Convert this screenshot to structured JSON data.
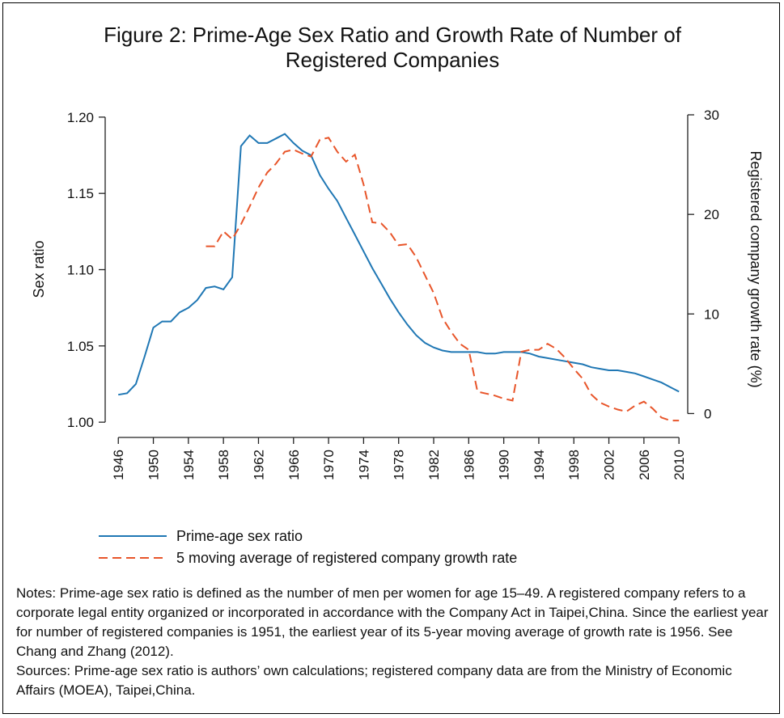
{
  "chart_data": {
    "type": "line",
    "title": "Figure 2: Prime-Age Sex Ratio and Growth Rate of Number of Registered Companies",
    "ylabel": "Sex ratio",
    "y2label": "Registered company growth rate (%)",
    "x": [
      1946,
      1947,
      1948,
      1949,
      1950,
      1951,
      1952,
      1953,
      1954,
      1955,
      1956,
      1957,
      1958,
      1959,
      1960,
      1961,
      1962,
      1963,
      1964,
      1965,
      1966,
      1967,
      1968,
      1969,
      1970,
      1971,
      1972,
      1973,
      1974,
      1975,
      1976,
      1977,
      1978,
      1979,
      1980,
      1981,
      1982,
      1983,
      1984,
      1985,
      1986,
      1987,
      1988,
      1989,
      1990,
      1991,
      1992,
      1993,
      1994,
      1995,
      1996,
      1997,
      1998,
      1999,
      2000,
      2001,
      2002,
      2003,
      2004,
      2005,
      2006,
      2007,
      2008,
      2009,
      2010
    ],
    "xlim": [
      1944.5,
      2011
    ],
    "xticks": [
      1946,
      1950,
      1954,
      1958,
      1962,
      1966,
      1970,
      1974,
      1978,
      1982,
      1986,
      1990,
      1994,
      1998,
      2002,
      2006,
      2010
    ],
    "ylim": [
      0.99,
      1.21
    ],
    "yticks": [
      {
        "value": 1,
        "label": "1.00"
      },
      1.05,
      {
        "value": 1.1,
        "label": "1.10"
      },
      1.15,
      {
        "value": 1.2,
        "label": "1.20"
      }
    ],
    "y2lim": [
      -2.4,
      31.3
    ],
    "y2ticks": [
      0,
      10,
      20,
      30
    ],
    "series": [
      {
        "name": "Prime-age sex ratio",
        "color": "#1f77b4",
        "dash": "solid",
        "values": [
          1.018,
          1.019,
          1.025,
          1.043,
          1.062,
          1.066,
          1.066,
          1.072,
          1.075,
          1.08,
          1.088,
          1.089,
          1.087,
          1.095,
          1.181,
          1.188,
          1.183,
          1.183,
          1.186,
          1.189,
          1.183,
          1.178,
          1.175,
          1.162,
          1.153,
          1.145,
          1.134,
          1.123,
          1.112,
          1.101,
          1.091,
          1.081,
          1.072,
          1.064,
          1.057,
          1.052,
          1.049,
          1.047,
          1.046,
          1.046,
          1.046,
          1.046,
          1.045,
          1.045,
          1.046,
          1.046,
          1.046,
          1.045,
          1.043,
          1.042,
          1.041,
          1.04,
          1.039,
          1.038,
          1.036,
          1.035,
          1.034,
          1.034,
          1.033,
          1.032,
          1.03,
          1.028,
          1.026,
          1.023,
          1.02
        ]
      },
      {
        "name": "5 moving average of registered company growth rate",
        "color": "#e8552a",
        "dash": "dashed",
        "axis": "y2",
        "values": [
          null,
          null,
          null,
          null,
          null,
          null,
          null,
          null,
          null,
          null,
          16.8,
          16.8,
          18.3,
          17.5,
          19.0,
          20.8,
          22.7,
          24.2,
          25.1,
          26.3,
          26.5,
          26.1,
          25.8,
          27.5,
          27.7,
          26.3,
          25.3,
          26.0,
          23.0,
          19.2,
          19.1,
          18.2,
          16.9,
          17.0,
          15.7,
          13.9,
          12.1,
          9.6,
          8.2,
          7.0,
          6.4,
          2.2,
          2.0,
          1.8,
          1.5,
          1.3,
          6.2,
          6.4,
          6.4,
          7.0,
          6.5,
          5.6,
          4.5,
          3.5,
          1.9,
          1.1,
          0.7,
          0.4,
          0.2,
          0.8,
          1.2,
          0.5,
          -0.4,
          -0.7,
          -0.7
        ]
      }
    ],
    "notes": "Notes: Prime-age sex ratio is defined as the number of men per women for age 15–49. A registered company refers to a corporate legal entity organized or incorporated in accordance with the Company Act in Taipei,China. Since the earliest year for number of registered companies is 1951, the earliest year of its 5-year moving average of growth rate is 1956. See Chang and Zhang (2012).",
    "sources": "Sources: Prime-age sex ratio is authors’ own calculations; registered company data are from the Ministry of Economic Affairs (MOEA), Taipei,China."
  }
}
